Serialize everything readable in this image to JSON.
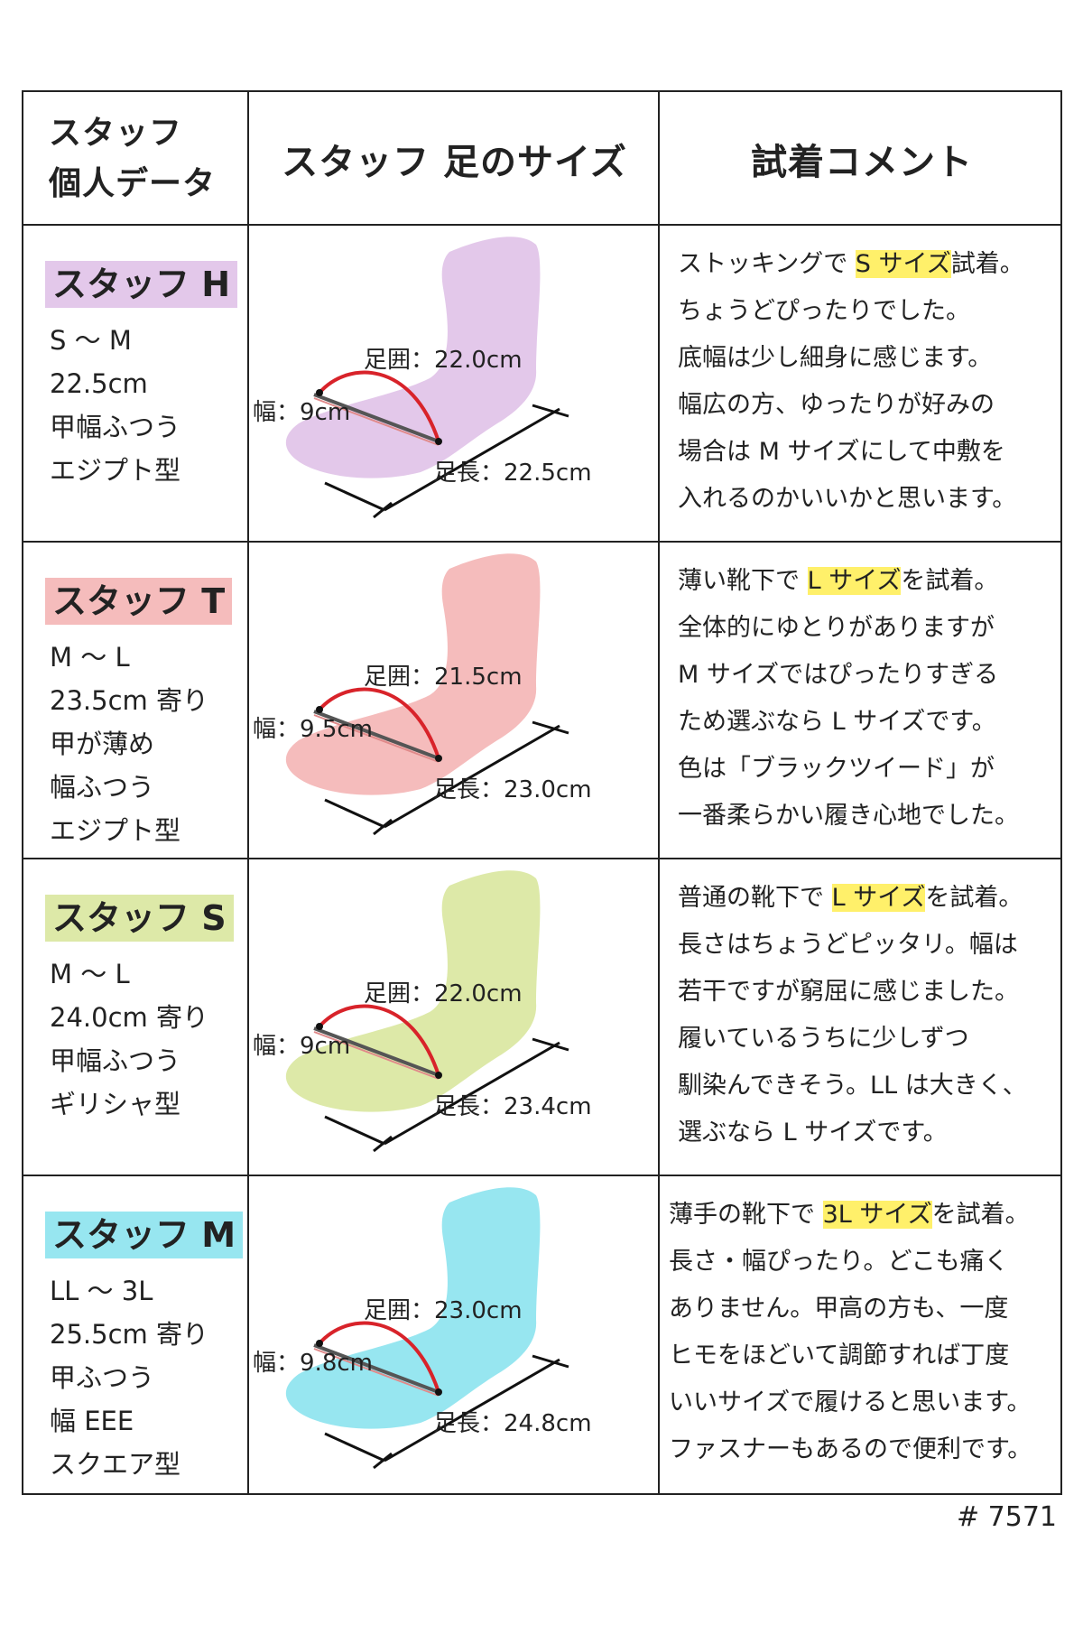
{
  "header": {
    "profile_line1": "スタッフ",
    "profile_line2": "個人データ",
    "size": "スタッフ 足のサイズ",
    "comment": "試着コメント"
  },
  "labels": {
    "girth": "足囲：",
    "width": "幅：",
    "length": "足長："
  },
  "colors": {
    "staff_h": "#e3c8ea",
    "staff_t": "#f5bcbc",
    "staff_s": "#dde9a8",
    "staff_m": "#97e6f0",
    "arc": "#d8232a",
    "highlight": "#fff06a"
  },
  "rows": [
    {
      "name": "スタッフ H",
      "profile": [
        "S ～ M",
        "22.5cm",
        "甲幅ふつう",
        "エジプト型"
      ],
      "girth": "22.0cm",
      "width": "9cm",
      "length": "22.5cm",
      "comment": [
        {
          "pre": "ストッキングで ",
          "hl": "S サイズ",
          "post": "試着。"
        },
        {
          "pre": "ちょうどぴったりでした。",
          "hl": "",
          "post": ""
        },
        {
          "pre": "底幅は少し細身に感じます。",
          "hl": "",
          "post": ""
        },
        {
          "pre": "幅広の方、ゆったりが好みの",
          "hl": "",
          "post": ""
        },
        {
          "pre": "場合は M サイズにして中敷を",
          "hl": "",
          "post": ""
        },
        {
          "pre": "入れるのかいいかと思います。",
          "hl": "",
          "post": ""
        }
      ]
    },
    {
      "name": "スタッフ T",
      "profile": [
        "M ～ L",
        "23.5cm 寄り",
        "甲が薄め",
        "幅ふつう",
        "エジプト型"
      ],
      "girth": "21.5cm",
      "width": "9.5cm",
      "length": "23.0cm",
      "comment": [
        {
          "pre": "薄い靴下で ",
          "hl": "L サイズ",
          "post": "を試着。"
        },
        {
          "pre": "全体的にゆとりがありますが",
          "hl": "",
          "post": ""
        },
        {
          "pre": "M サイズではぴったりすぎる",
          "hl": "",
          "post": ""
        },
        {
          "pre": "ため選ぶなら L サイズです。",
          "hl": "",
          "post": ""
        },
        {
          "pre": "色は「ブラックツイード」が",
          "hl": "",
          "post": ""
        },
        {
          "pre": "一番柔らかい履き心地でした。",
          "hl": "",
          "post": ""
        }
      ]
    },
    {
      "name": "スタッフ S",
      "profile": [
        "M ～ L",
        "24.0cm 寄り",
        "甲幅ふつう",
        "ギリシャ型"
      ],
      "girth": "22.0cm",
      "width": "9cm",
      "length": "23.4cm",
      "comment": [
        {
          "pre": "普通の靴下で ",
          "hl": "L サイズ",
          "post": "を試着。"
        },
        {
          "pre": "長さはちょうどピッタリ。幅は",
          "hl": "",
          "post": ""
        },
        {
          "pre": "若干ですが窮屈に感じました。",
          "hl": "",
          "post": ""
        },
        {
          "pre": "履いているうちに少しずつ",
          "hl": "",
          "post": ""
        },
        {
          "pre": "馴染んできそう。LL は大きく、",
          "hl": "",
          "post": ""
        },
        {
          "pre": "選ぶなら L サイズです。",
          "hl": "",
          "post": ""
        }
      ]
    },
    {
      "name": "スタッフ M",
      "profile": [
        "LL ～ 3L",
        "25.5cm 寄り",
        "甲ふつう",
        "幅 EEE",
        "スクエア型"
      ],
      "girth": "23.0cm",
      "width": "9.8cm",
      "length": "24.8cm",
      "comment": [
        {
          "pre": "薄手の靴下で ",
          "hl": "3L サイズ",
          "post": "を試着。"
        },
        {
          "pre": "長さ・幅ぴったり。どこも痛く",
          "hl": "",
          "post": ""
        },
        {
          "pre": "ありません。甲高の方も、一度",
          "hl": "",
          "post": ""
        },
        {
          "pre": "ヒモをほどいて調節すれば丁度",
          "hl": "",
          "post": ""
        },
        {
          "pre": "いいサイズで履けると思います。",
          "hl": "",
          "post": ""
        },
        {
          "pre": "ファスナーもあるので便利です。",
          "hl": "",
          "post": ""
        }
      ]
    }
  ],
  "footer": "# 7571"
}
